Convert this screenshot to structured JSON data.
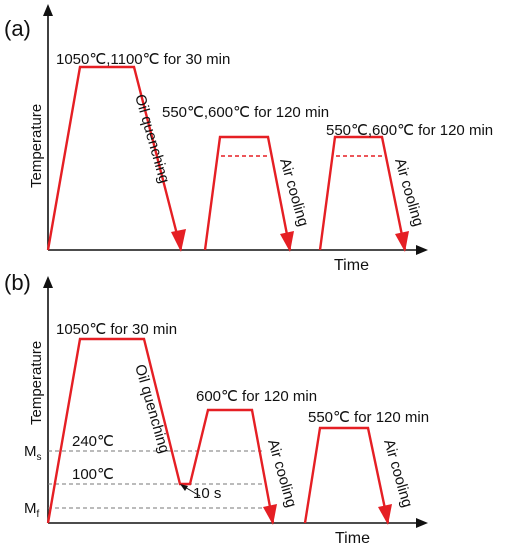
{
  "colors": {
    "curve": "#e51f24",
    "axis": "#111111",
    "guide": "#777777"
  },
  "panel_a": {
    "label": "(a)",
    "y_axis_label": "Temperature",
    "x_axis_label": "Time",
    "austenitize": "1050℃,1100℃ for 30 min",
    "quench": "Oil quenching",
    "temper1": "550℃,600℃ for 120 min",
    "air_cooling_1": "Air cooling",
    "temper2": "550℃,600℃ for 120 min",
    "air_cooling_2": "Air cooling"
  },
  "panel_b": {
    "label": "(b)",
    "y_axis_label": "Temperature",
    "x_axis_label": "Time",
    "austenitize": "1050℃ for 30 min",
    "quench": "Oil quenching",
    "partition": "600℃ for 120 min",
    "air_cooling_1": "Air cooling",
    "temper": "550℃ for 120 min",
    "air_cooling_2": "Air cooling",
    "ms_temp": "240℃",
    "quench_temp": "100℃",
    "hold_time": "10 s",
    "ms_symbol": "M",
    "ms_sub": "s",
    "mf_symbol": "M",
    "mf_sub": "f"
  }
}
